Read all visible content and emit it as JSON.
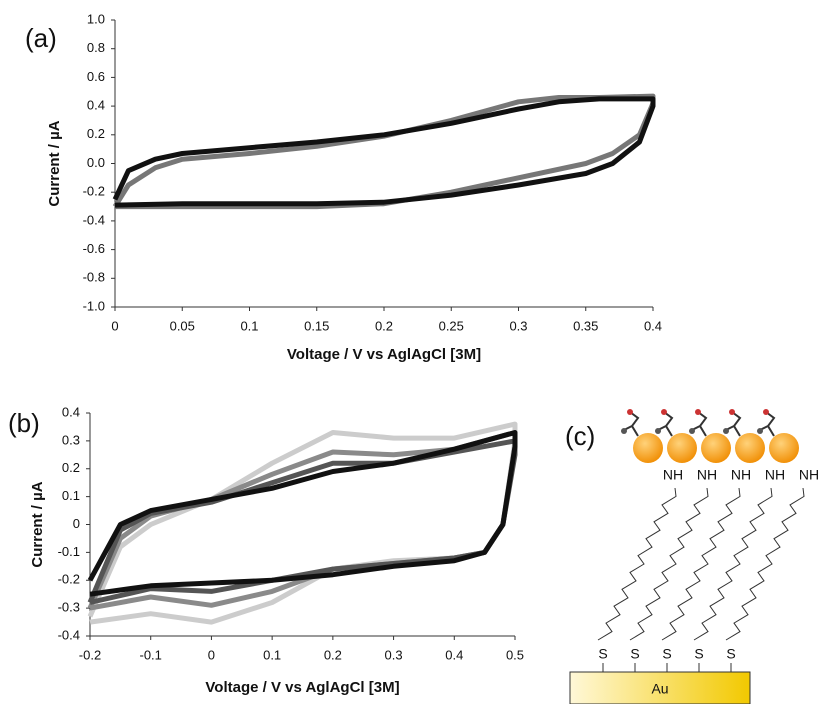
{
  "chart_data": [
    {
      "type": "line",
      "panel_label": "(a)",
      "x_label": "Voltage / V vs AglAgCl [3M]",
      "y_label": "Current / µA",
      "xlim": [
        0,
        0.4
      ],
      "ylim": [
        -1,
        1
      ],
      "xticks": [
        0,
        0.05,
        0.1,
        0.15,
        0.2,
        0.25,
        0.3,
        0.35,
        0.4
      ],
      "yticks": [
        {
          "value": 1,
          "label": "1.0"
        },
        {
          "value": 0.8,
          "label": "0.8"
        },
        {
          "value": 0.6,
          "label": "0.6"
        },
        {
          "value": 0.4,
          "label": "0.4"
        },
        {
          "value": 0.2,
          "label": "0.2"
        },
        {
          "value": 0,
          "label": "0.0"
        },
        {
          "value": -0.2,
          "label": "-0.2"
        },
        {
          "value": -0.4,
          "label": "-0.4"
        },
        {
          "value": -0.6,
          "label": "-0.6"
        },
        {
          "value": -0.8,
          "label": "-0.8"
        },
        {
          "value": -1,
          "label": "-1.0"
        }
      ],
      "series": [
        {
          "color": "#777777",
          "x": [
            0,
            0.01,
            0.03,
            0.05,
            0.1,
            0.15,
            0.2,
            0.25,
            0.3,
            0.33,
            0.36,
            0.4,
            0.4,
            0.39,
            0.37,
            0.35,
            0.3,
            0.25,
            0.2,
            0.15,
            0.1,
            0.05,
            0
          ],
          "values": [
            -0.3,
            -0.15,
            -0.03,
            0.03,
            0.07,
            0.12,
            0.19,
            0.3,
            0.43,
            0.46,
            0.46,
            0.47,
            0.42,
            0.2,
            0.07,
            0,
            -0.1,
            -0.2,
            -0.28,
            -0.3,
            -0.3,
            -0.3,
            -0.3
          ]
        },
        {
          "color": "#111111",
          "x": [
            0,
            0.01,
            0.03,
            0.05,
            0.1,
            0.15,
            0.2,
            0.25,
            0.3,
            0.33,
            0.36,
            0.4,
            0.4,
            0.39,
            0.37,
            0.35,
            0.3,
            0.25,
            0.2,
            0.15,
            0.1,
            0.05,
            0
          ],
          "values": [
            -0.25,
            -0.05,
            0.03,
            0.07,
            0.11,
            0.15,
            0.2,
            0.28,
            0.38,
            0.43,
            0.45,
            0.45,
            0.4,
            0.15,
            0,
            -0.07,
            -0.15,
            -0.22,
            -0.27,
            -0.28,
            -0.28,
            -0.28,
            -0.29
          ]
        }
      ]
    },
    {
      "type": "line",
      "panel_label": "(b)",
      "x_label": "Voltage / V vs AglAgCl [3M]",
      "y_label": "Current / µA",
      "xlim": [
        -0.2,
        0.5
      ],
      "ylim": [
        -0.4,
        0.4
      ],
      "xticks": [
        -0.2,
        -0.1,
        0,
        0.1,
        0.2,
        0.3,
        0.4,
        0.5
      ],
      "yticks": [
        0.4,
        0.3,
        0.2,
        0.1,
        0,
        -0.1,
        -0.2,
        -0.3,
        -0.4
      ],
      "series": [
        {
          "color": "#cccccc",
          "x": [
            -0.2,
            -0.15,
            -0.1,
            0,
            0.1,
            0.2,
            0.3,
            0.4,
            0.5,
            0.5,
            0.48,
            0.45,
            0.4,
            0.3,
            0.2,
            0.1,
            0,
            -0.1,
            -0.2
          ],
          "values": [
            -0.33,
            -0.08,
            0,
            0.09,
            0.22,
            0.33,
            0.31,
            0.31,
            0.36,
            0.3,
            0,
            -0.1,
            -0.12,
            -0.13,
            -0.16,
            -0.28,
            -0.35,
            -0.32,
            -0.35
          ]
        },
        {
          "color": "#8a8a8a",
          "x": [
            -0.2,
            -0.15,
            -0.1,
            0,
            0.1,
            0.2,
            0.3,
            0.4,
            0.5,
            0.5,
            0.48,
            0.45,
            0.4,
            0.3,
            0.2,
            0.1,
            0,
            -0.1,
            -0.2
          ],
          "values": [
            -0.3,
            -0.05,
            0.03,
            0.09,
            0.18,
            0.26,
            0.25,
            0.27,
            0.33,
            0.28,
            0,
            -0.1,
            -0.12,
            -0.14,
            -0.16,
            -0.24,
            -0.29,
            -0.26,
            -0.3
          ]
        },
        {
          "color": "#555555",
          "x": [
            -0.2,
            -0.15,
            -0.1,
            0,
            0.1,
            0.2,
            0.3,
            0.4,
            0.5,
            0.5,
            0.48,
            0.45,
            0.4,
            0.3,
            0.2,
            0.1,
            0,
            -0.1,
            -0.2
          ],
          "values": [
            -0.28,
            -0.02,
            0.04,
            0.08,
            0.15,
            0.22,
            0.22,
            0.26,
            0.3,
            0.25,
            0,
            -0.1,
            -0.12,
            -0.14,
            -0.16,
            -0.2,
            -0.24,
            -0.23,
            -0.28
          ]
        },
        {
          "color": "#111111",
          "x": [
            -0.2,
            -0.15,
            -0.1,
            0,
            0.1,
            0.2,
            0.3,
            0.4,
            0.5,
            0.5,
            0.48,
            0.45,
            0.4,
            0.3,
            0.2,
            0.1,
            0,
            -0.1,
            -0.2
          ],
          "values": [
            -0.2,
            0,
            0.05,
            0.09,
            0.13,
            0.19,
            0.22,
            0.27,
            0.33,
            0.28,
            0,
            -0.1,
            -0.13,
            -0.15,
            -0.18,
            -0.2,
            -0.21,
            -0.22,
            -0.25
          ]
        }
      ]
    }
  ],
  "diagram": {
    "panel_label": "(c)",
    "amine_labels": [
      "NH",
      "NH",
      "NH",
      "NH",
      "NH"
    ],
    "thiol_labels": [
      "S",
      "S",
      "S",
      "S",
      "S"
    ],
    "substrate": "Au"
  }
}
